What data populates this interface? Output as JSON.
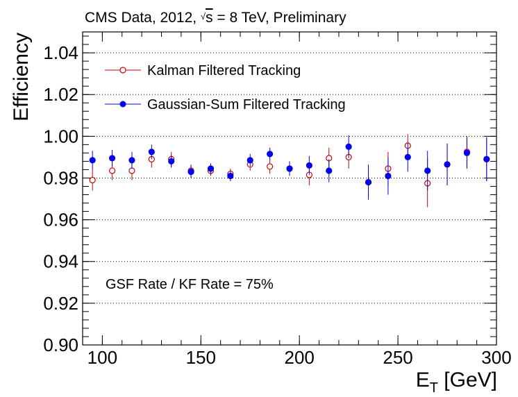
{
  "chart_data": {
    "type": "scatter",
    "title": "CMS Data, 2012, √s = 8 TeV, Preliminary",
    "title_parts": {
      "prefix": "CMS Data, 2012, ",
      "sqrt_symbol": "√",
      "sqrt_var": "s",
      "suffix": " = 8 TeV, Preliminary"
    },
    "xlabel": "E_T [GeV]",
    "xlabel_parts": {
      "main": "E",
      "sub": "T",
      "rest": " [GeV]"
    },
    "ylabel": "Efficiency",
    "xlim": [
      90,
      300
    ],
    "ylim": [
      0.9,
      1.05
    ],
    "x_ticks": [
      100,
      150,
      200,
      250,
      300
    ],
    "x_tick_labels": [
      "100",
      "150",
      "200",
      "250",
      "300"
    ],
    "y_ticks": [
      0.9,
      0.92,
      0.94,
      0.96,
      0.98,
      1.0,
      1.02,
      1.04
    ],
    "y_tick_labels": [
      "0.90",
      "0.92",
      "0.94",
      "0.96",
      "0.98",
      "1.00",
      "1.02",
      "1.04"
    ],
    "grid": "horizontal dotted",
    "legend_position": "top-left",
    "annotation": "GSF Rate / KF Rate = 75%",
    "series": [
      {
        "name": "Kalman Filtered Tracking",
        "marker": "open-circle",
        "color": "#cc0000",
        "x": [
          95,
          105,
          115,
          125,
          135,
          145,
          155,
          165,
          175,
          185,
          195,
          205,
          215,
          225,
          235,
          245,
          255,
          265,
          275,
          285,
          295
        ],
        "y": [
          0.979,
          0.9835,
          0.9835,
          0.989,
          0.989,
          0.9835,
          0.9835,
          0.982,
          0.9865,
          0.9855,
          0.9845,
          0.9815,
          0.9895,
          0.99,
          0.978,
          0.9845,
          0.9955,
          0.9775,
          0.9865,
          0.9925,
          0.989
        ],
        "yerr": [
          0.005,
          0.0045,
          0.0045,
          0.004,
          0.0035,
          0.003,
          0.0025,
          0.0025,
          0.003,
          0.0035,
          0.0035,
          0.005,
          0.005,
          0.0055,
          0.0085,
          0.008,
          0.0055,
          0.0115,
          0.01,
          0.0075,
          0.0105
        ]
      },
      {
        "name": "Gaussian-Sum Filtered Tracking",
        "marker": "filled-circle",
        "color": "#0000ee",
        "x": [
          95,
          105,
          115,
          125,
          135,
          145,
          155,
          165,
          175,
          185,
          195,
          205,
          215,
          225,
          235,
          245,
          255,
          265,
          275,
          285,
          295
        ],
        "y": [
          0.9885,
          0.9895,
          0.9885,
          0.9925,
          0.988,
          0.983,
          0.9845,
          0.981,
          0.9885,
          0.9915,
          0.9845,
          0.986,
          0.9835,
          0.995,
          0.978,
          0.981,
          0.99,
          0.9835,
          0.9865,
          0.992,
          0.989
        ],
        "yerr": [
          0.0045,
          0.004,
          0.004,
          0.0035,
          0.003,
          0.003,
          0.0025,
          0.0025,
          0.003,
          0.003,
          0.0035,
          0.0045,
          0.0055,
          0.0055,
          0.008,
          0.009,
          0.007,
          0.0095,
          0.01,
          0.0075,
          0.0105
        ]
      }
    ]
  }
}
